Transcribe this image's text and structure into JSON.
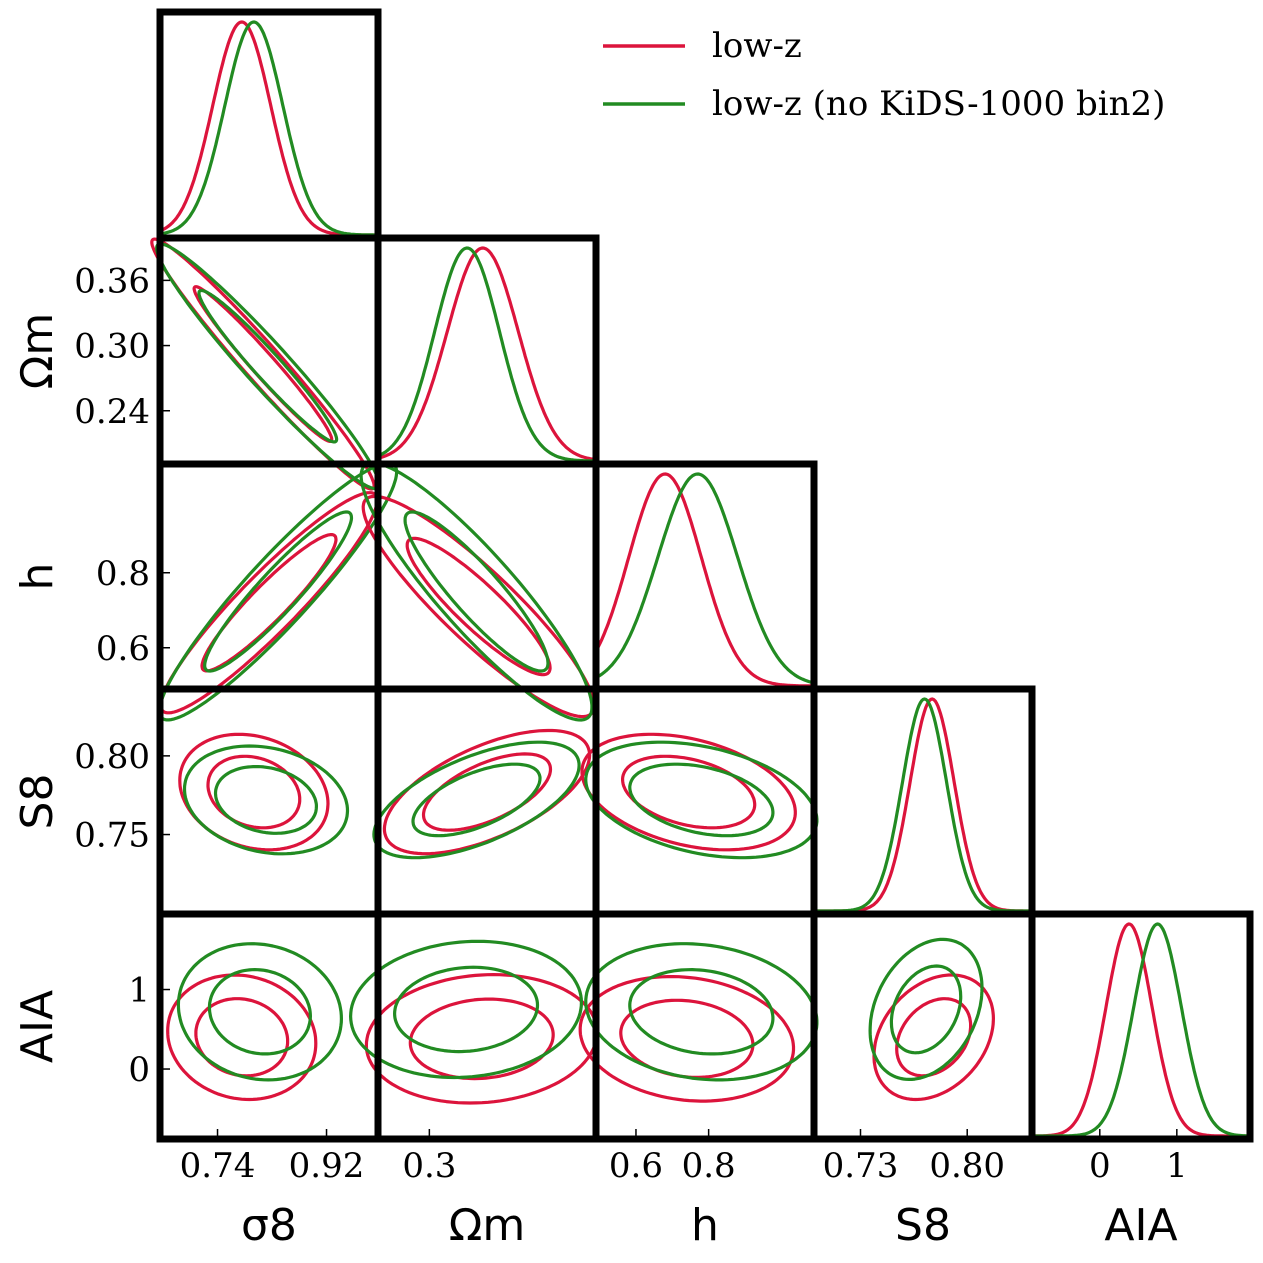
{
  "colors": {
    "low_z": "#DC143C",
    "no_bin2": "#228B22",
    "frame": "#000000"
  },
  "legend": {
    "position": "top-right",
    "entries": [
      {
        "label": "low-z",
        "color": "#DC143C"
      },
      {
        "label": "low-z (no KiDS-1000 bin2)",
        "color": "#228B22"
      }
    ]
  },
  "chart_data": {
    "type": "corner",
    "series": [
      {
        "name": "low-z",
        "color": "#DC143C"
      },
      {
        "name": "low-z (no KiDS-1000 bin2)",
        "color": "#228B22"
      }
    ],
    "parameters": [
      {
        "key": "sigma8",
        "xlabel": "σ8",
        "ylabel": "",
        "range": [
          0.645,
          1.005
        ],
        "ticks": [
          0.74,
          0.92
        ],
        "tick_labels": [
          "0.74",
          "0.92"
        ]
      },
      {
        "key": "Omega_m",
        "xlabel": "Ωm",
        "ylabel": "Ωm",
        "range": [
          0.191,
          0.399
        ],
        "ticks": [
          0.24,
          0.3,
          0.36
        ],
        "tick_labels": [
          "0.24",
          "0.30",
          "0.36"
        ],
        "xtick_labels": [
          "0.3"
        ]
      },
      {
        "key": "h",
        "xlabel": "h",
        "ylabel": "h",
        "range": [
          0.49,
          1.09
        ],
        "ticks": [
          0.6,
          0.8
        ],
        "tick_labels": [
          "0.6",
          "0.8"
        ]
      },
      {
        "key": "S8",
        "xlabel": "S8",
        "ylabel": "S8",
        "range": [
          0.6995,
          0.8425
        ],
        "ticks": [
          0.75,
          0.8
        ],
        "tick_labels": [
          "0.75",
          "0.80"
        ],
        "xtick_labels": [
          "0.73",
          "0.80"
        ],
        "xticks": [
          0.73,
          0.8
        ]
      },
      {
        "key": "A_IA",
        "xlabel": "AIA",
        "ylabel": "AIA",
        "range": [
          -0.88,
          1.95
        ],
        "ticks": [
          0,
          1
        ],
        "tick_labels": [
          "0",
          "1"
        ]
      }
    ],
    "marginals": {
      "sigma8": [
        {
          "series": 0,
          "mean": 0.78,
          "sigma": 0.048
        },
        {
          "series": 1,
          "mean": 0.8,
          "sigma": 0.048
        }
      ],
      "Omega_m": [
        {
          "series": 0,
          "mean": 0.291,
          "sigma": 0.034
        },
        {
          "series": 1,
          "mean": 0.276,
          "sigma": 0.031
        }
      ],
      "h": [
        {
          "series": 0,
          "mean": 0.68,
          "sigma": 0.1
        },
        {
          "series": 1,
          "mean": 0.77,
          "sigma": 0.11
        }
      ],
      "S8": [
        {
          "series": 0,
          "mean": 0.777,
          "sigma": 0.0145
        },
        {
          "series": 1,
          "mean": 0.772,
          "sigma": 0.0145
        }
      ],
      "A_IA": [
        {
          "series": 0,
          "mean": 0.38,
          "sigma": 0.3
        },
        {
          "series": 1,
          "mean": 0.75,
          "sigma": 0.31
        }
      ]
    },
    "contours": [
      {
        "x": "sigma8",
        "y": "Omega_m",
        "series": 0,
        "mean": [
          0.815,
          0.283
        ],
        "sd": [
          0.075,
          0.047
        ],
        "rho": -0.975
      },
      {
        "x": "sigma8",
        "y": "Omega_m",
        "series": 1,
        "mean": [
          0.823,
          0.281
        ],
        "sd": [
          0.075,
          0.046
        ],
        "rho": -0.965
      },
      {
        "x": "sigma8",
        "y": "h",
        "series": 0,
        "mean": [
          0.825,
          0.72
        ],
        "sd": [
          0.073,
          0.12
        ],
        "rho": 0.93
      },
      {
        "x": "sigma8",
        "y": "h",
        "series": 1,
        "mean": [
          0.84,
          0.75
        ],
        "sd": [
          0.08,
          0.14
        ],
        "rho": 0.93
      },
      {
        "x": "Omega_m",
        "y": "h",
        "series": 0,
        "mean": [
          0.287,
          0.71
        ],
        "sd": [
          0.045,
          0.12
        ],
        "rho": -0.9
      },
      {
        "x": "Omega_m",
        "y": "h",
        "series": 1,
        "mean": [
          0.285,
          0.75
        ],
        "sd": [
          0.045,
          0.14
        ],
        "rho": -0.9
      },
      {
        "x": "sigma8",
        "y": "S8",
        "series": 0,
        "mean": [
          0.8,
          0.777
        ],
        "sd": [
          0.05,
          0.015
        ],
        "rho": -0.2
      },
      {
        "x": "sigma8",
        "y": "S8",
        "series": 1,
        "mean": [
          0.82,
          0.772
        ],
        "sd": [
          0.055,
          0.014
        ],
        "rho": -0.2
      },
      {
        "x": "Omega_m",
        "y": "S8",
        "series": 0,
        "mean": [
          0.295,
          0.777
        ],
        "sd": [
          0.04,
          0.016
        ],
        "rho": 0.6
      },
      {
        "x": "Omega_m",
        "y": "S8",
        "series": 1,
        "mean": [
          0.285,
          0.772
        ],
        "sd": [
          0.04,
          0.015
        ],
        "rho": 0.6
      },
      {
        "x": "h",
        "y": "S8",
        "series": 0,
        "mean": [
          0.745,
          0.777
        ],
        "sd": [
          0.12,
          0.015
        ],
        "rho": -0.35
      },
      {
        "x": "h",
        "y": "S8",
        "series": 1,
        "mean": [
          0.78,
          0.772
        ],
        "sd": [
          0.13,
          0.015
        ],
        "rho": -0.35
      },
      {
        "x": "sigma8",
        "y": "A_IA",
        "series": 0,
        "mean": [
          0.78,
          0.4
        ],
        "sd": [
          0.05,
          0.32
        ],
        "rho": -0.1
      },
      {
        "x": "sigma8",
        "y": "A_IA",
        "series": 1,
        "mean": [
          0.81,
          0.72
        ],
        "sd": [
          0.055,
          0.35
        ],
        "rho": -0.1
      },
      {
        "x": "Omega_m",
        "y": "A_IA",
        "series": 0,
        "mean": [
          0.29,
          0.38
        ],
        "sd": [
          0.045,
          0.33
        ],
        "rho": 0.1
      },
      {
        "x": "Omega_m",
        "y": "A_IA",
        "series": 1,
        "mean": [
          0.275,
          0.75
        ],
        "sd": [
          0.045,
          0.35
        ],
        "rho": 0.1
      },
      {
        "x": "h",
        "y": "A_IA",
        "series": 0,
        "mean": [
          0.74,
          0.38
        ],
        "sd": [
          0.12,
          0.32
        ],
        "rho": -0.15
      },
      {
        "x": "h",
        "y": "A_IA",
        "series": 1,
        "mean": [
          0.78,
          0.72
        ],
        "sd": [
          0.13,
          0.35
        ],
        "rho": -0.15
      },
      {
        "x": "S8",
        "y": "A_IA",
        "series": 0,
        "mean": [
          0.778,
          0.4
        ],
        "sd": [
          0.016,
          0.32
        ],
        "rho": 0.3
      },
      {
        "x": "S8",
        "y": "A_IA",
        "series": 1,
        "mean": [
          0.773,
          0.75
        ],
        "sd": [
          0.015,
          0.36
        ],
        "rho": 0.3
      }
    ],
    "contour_levels": [
      "68%",
      "95%"
    ]
  }
}
